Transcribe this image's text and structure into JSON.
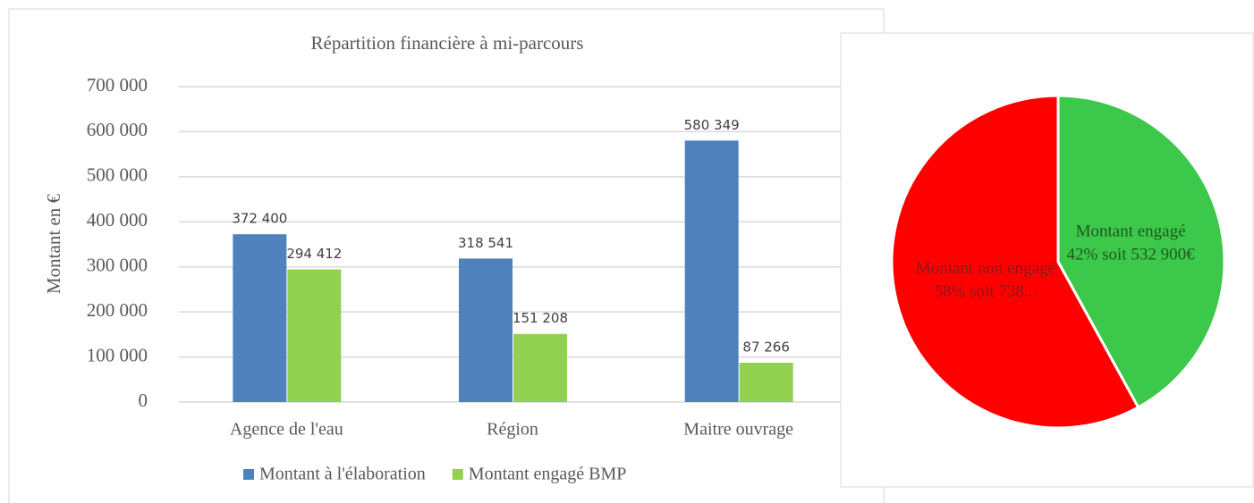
{
  "chart_data": [
    {
      "type": "bar",
      "title": "Répartition financière à mi-parcours",
      "ylabel": "Montant en €",
      "categories": [
        "Agence de l'eau",
        "Région",
        "Maitre ouvrage"
      ],
      "series": [
        {
          "name": "Montant à l'élaboration",
          "color": "#4f81bd",
          "values": [
            372400,
            318541,
            580349
          ],
          "value_labels": [
            "372 400",
            "318 541",
            "580 349"
          ]
        },
        {
          "name": "Montant engagé BMP",
          "color": "#92d050",
          "values": [
            294412,
            151208,
            87266
          ],
          "value_labels": [
            "294 412",
            "151 208",
            "87 266"
          ]
        }
      ],
      "ylim": [
        0,
        700000
      ],
      "yticks": [
        0,
        {
          "value": 100000,
          "label": "100 000"
        },
        {
          "value": 200000,
          "label": "200 000"
        },
        {
          "value": 300000,
          "label": "300 000"
        },
        {
          "value": 400000,
          "label": "400 000"
        },
        {
          "value": 500000,
          "label": "500 000"
        },
        {
          "value": 600000,
          "label": "600 000"
        },
        {
          "value": 700000,
          "label": "700 000"
        }
      ],
      "grid": true,
      "legend": "bottom"
    },
    {
      "type": "pie",
      "categories": [
        "Montant engagé",
        "Montant non engagé"
      ],
      "values": [
        42,
        58
      ],
      "value_labels": [
        "42% soit 532 900€",
        "58% soit 738..."
      ],
      "colors": [
        "#3cc84a",
        "#ff0000"
      ]
    }
  ]
}
